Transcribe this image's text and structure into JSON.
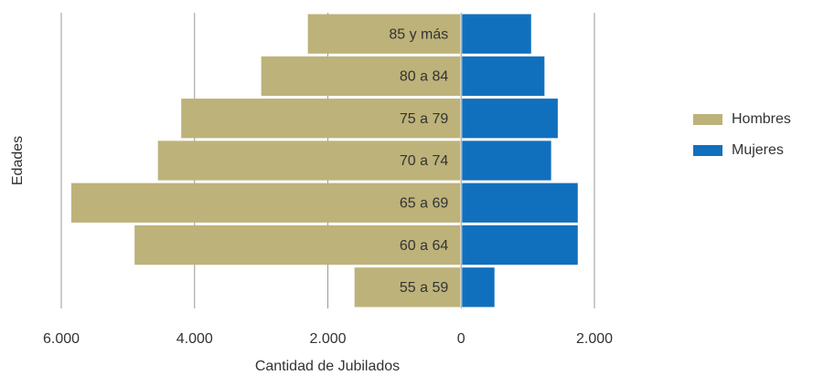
{
  "chart_data": {
    "type": "pyramid",
    "xlabel": "Cantidad de Jubilados",
    "ylabel": "Edades",
    "categories": [
      "85 y más",
      "80 a 84",
      "75 a 79",
      "70 a 74",
      "65 a 69",
      "60 a 64",
      "55 a 59"
    ],
    "series": [
      {
        "name": "Hombres",
        "color": "#bdb27a",
        "values": [
          -2300,
          -3000,
          -4200,
          -4550,
          -5850,
          -4900,
          -1600
        ]
      },
      {
        "name": "Mujeres",
        "color": "#1170bd",
        "values": [
          1050,
          1250,
          1450,
          1350,
          1750,
          1750,
          500
        ]
      }
    ],
    "xlim": [
      -6000,
      2000
    ],
    "xticks": [
      {
        "value": -6000,
        "label": "6.000"
      },
      {
        "value": -4000,
        "label": "4.000"
      },
      {
        "value": -2000,
        "label": "2.000"
      },
      0,
      {
        "value": 2000,
        "label": "2.000"
      }
    ],
    "grid": true,
    "legend": "right"
  }
}
